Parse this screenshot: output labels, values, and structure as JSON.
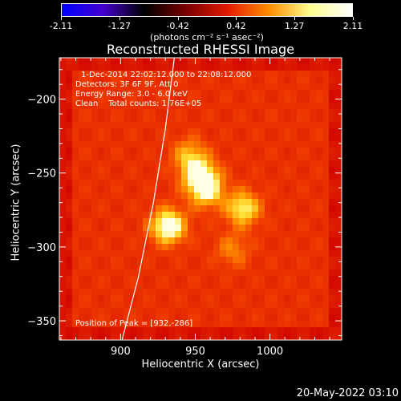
{
  "colorbar": {
    "ticks": [
      "-2.11",
      "-1.27",
      "-0.42",
      "0.42",
      "1.27",
      "2.11"
    ],
    "tick_fracs": [
      0,
      0.2,
      0.4,
      0.6,
      0.8,
      1.0
    ],
    "units": "(photons cm⁻² s⁻¹ asec⁻²)",
    "colors": [
      "#0000ff",
      "#4400cc",
      "#000000",
      "#7a0000",
      "#e21b00",
      "#ff8c00",
      "#ffff90",
      "#ffffff"
    ]
  },
  "annotations": {
    "time_range": "1-Dec-2014 22:02:12.000 to 22:08:12.000",
    "detectors": "Detectors: 3F 6F 9F, Att 0",
    "energy": "Energy Range: 3.0 - 6.0 keV",
    "clean": "Clean    Total counts: 1.76E+05",
    "peak": "Position of Peak = [932,-286]"
  },
  "footer": "20-May-2022 03:10",
  "chart_data": {
    "type": "heatmap",
    "title": "Reconstructed RHESSI Image",
    "xlabel": "Heliocentric X (arcsec)",
    "ylabel": "Heliocentric Y (arcsec)",
    "xlim": [
      859,
      1048
    ],
    "ylim": [
      -363,
      -172
    ],
    "xticks": [
      900,
      950,
      1000
    ],
    "yticks": [
      -200,
      -250,
      -300,
      -350
    ],
    "peak": [
      932,
      -286
    ],
    "sources": [
      {
        "x": 932,
        "y": -286,
        "intensity": 1.0
      },
      {
        "x": 953,
        "y": -252,
        "intensity": 0.85
      },
      {
        "x": 958,
        "y": -262,
        "intensity": 0.7
      },
      {
        "x": 982,
        "y": -274,
        "intensity": 0.75
      },
      {
        "x": 975,
        "y": -302,
        "intensity": 0.35
      },
      {
        "x": 946,
        "y": -238,
        "intensity": 0.5
      }
    ],
    "background_level": 0.55,
    "limb": {
      "x": [
        936,
        930,
        922,
        912,
        901
      ],
      "y": [
        -172,
        -220,
        -270,
        -320,
        -363
      ]
    }
  }
}
